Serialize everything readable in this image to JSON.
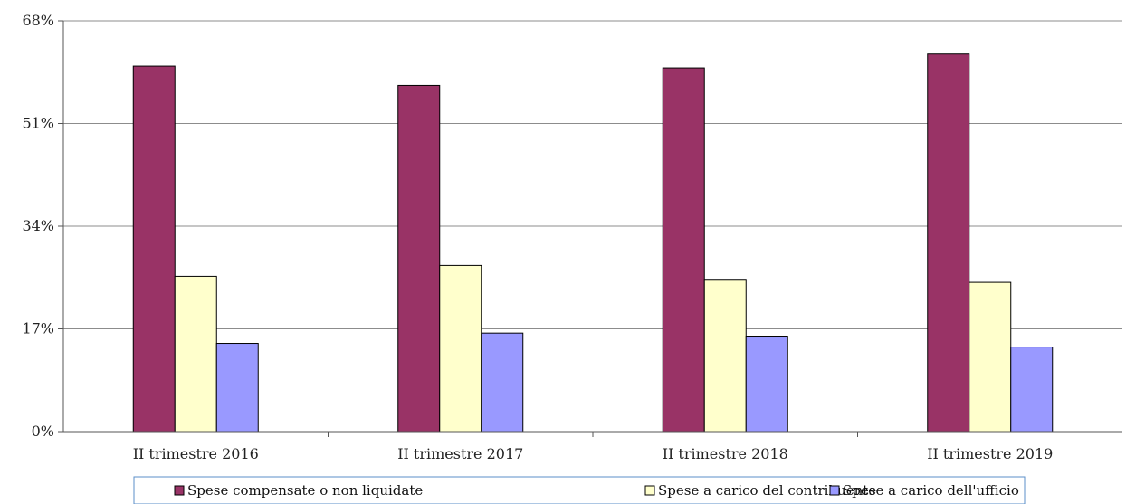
{
  "chart_data": {
    "type": "bar",
    "title": "",
    "xlabel": "",
    "ylabel": "",
    "categories": [
      "II trimestre 2016",
      "II trimestre 2017",
      "II trimestre 2018",
      "II trimestre 2019"
    ],
    "y_ticks": [
      "0%",
      "17%",
      "34%",
      "51%",
      "68%"
    ],
    "ylim": [
      0,
      68
    ],
    "grid": true,
    "legend_position": "bottom",
    "series": [
      {
        "name": "Spese compensate o non liquidate",
        "color": "#993366",
        "values": [
          60.5,
          57.3,
          60.2,
          62.5
        ]
      },
      {
        "name": "Spese a carico del contribuente",
        "color": "#FFFFCC",
        "values": [
          25.7,
          27.5,
          25.2,
          24.7
        ]
      },
      {
        "name": "Spese a carico dell'ufficio",
        "color": "#9999FF",
        "values": [
          14.6,
          16.3,
          15.8,
          14.0
        ]
      }
    ]
  }
}
